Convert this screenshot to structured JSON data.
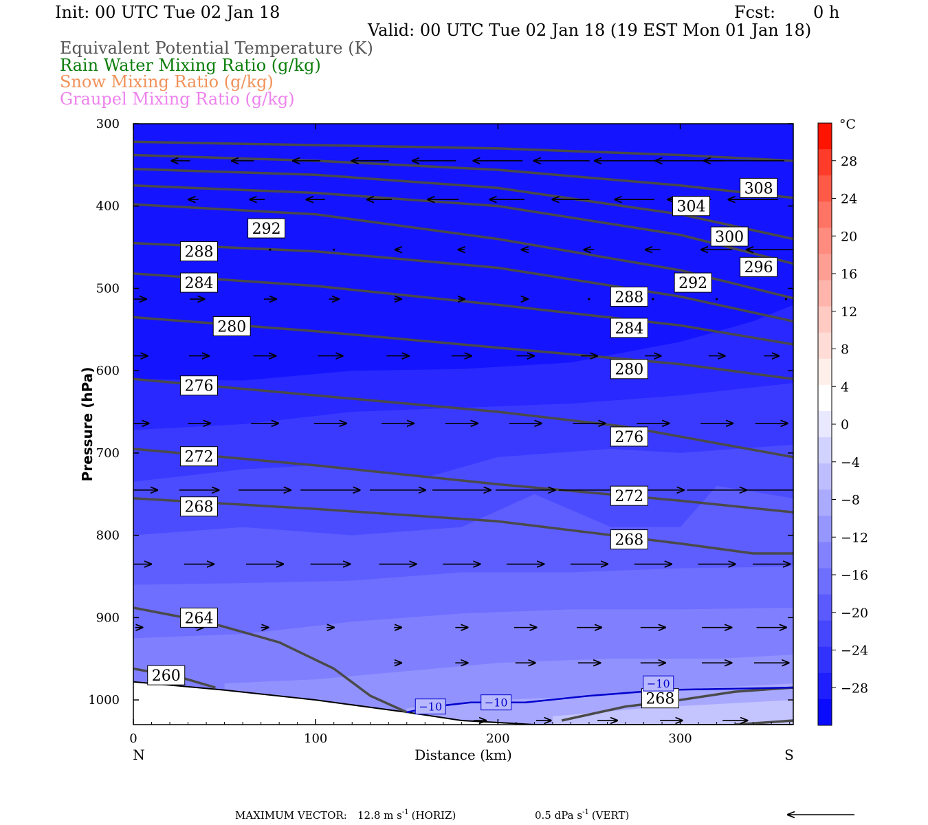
{
  "header": {
    "init": "Init: 00 UTC Tue 02 Jan 18",
    "fcst_label": "Fcst:",
    "fcst_value": "0 h",
    "valid": "Valid: 00 UTC Tue 02 Jan 18 (19 EST Mon 01 Jan 18)"
  },
  "legend": [
    {
      "text": "Equivalent Potential Temperature (K)",
      "color": "#555555"
    },
    {
      "text": "Rain Water Mixing Ratio (g/kg)",
      "color": "#0b7d0b"
    },
    {
      "text": "Snow Mixing Ratio (g/kg)",
      "color": "#f0925a"
    },
    {
      "text": "Graupel Mixing Ratio (g/kg)",
      "color": "#ee82ee"
    }
  ],
  "footer": {
    "max_vector_label": "MAXIMUM VECTOR:",
    "horiz_value": "12.8 m s",
    "horiz_exp": "-1",
    "horiz_tag": "(HORIZ)",
    "vert_value": "0.5 dPa s",
    "vert_exp": "-1",
    "vert_tag": "(VERT)"
  },
  "chart_data": {
    "type": "contour",
    "xlabel": "Distance (km)",
    "ylabel": "Pressure (hPa)",
    "xlim": [
      0,
      362
    ],
    "ylim": [
      300,
      1030
    ],
    "y_scale": "linear-pressure",
    "x_ticks": [
      "0",
      "100",
      "200",
      "300"
    ],
    "x_tick_values": [
      0,
      100,
      200,
      300
    ],
    "y_ticks": [
      "300",
      "400",
      "500",
      "600",
      "700",
      "800",
      "900",
      "1000"
    ],
    "y_tick_values": [
      300,
      400,
      500,
      600,
      700,
      800,
      900,
      1000
    ],
    "x_end_labels": {
      "left": "N",
      "right": "S"
    },
    "colorbar": {
      "unit": "°C",
      "labels": [
        "28",
        "24",
        "20",
        "16",
        "12",
        "8",
        "4",
        "0",
        "−4",
        "−8",
        "−12",
        "−16",
        "−20",
        "−24",
        "−28"
      ],
      "values": [
        28,
        24,
        20,
        16,
        12,
        8,
        4,
        0,
        -4,
        -8,
        -12,
        -16,
        -20,
        -24,
        -28
      ],
      "range": [
        -32,
        32
      ],
      "colors": [
        "#ff1400",
        "#ff3c2a",
        "#ff5a48",
        "#ff7464",
        "#ff8c7e",
        "#ff9f94",
        "#ffb5ab",
        "#ffcac2",
        "#ffdcd6",
        "#ffefeb",
        "#ffffff",
        "#e8e8ff",
        "#d2d2ff",
        "#bebeff",
        "#aaaaff",
        "#9696ff",
        "#8282ff",
        "#6e6eff",
        "#5a5aff",
        "#4646ff",
        "#3232ff",
        "#1e1eff",
        "#0a0aff"
      ]
    },
    "temperature_bands": [
      {
        "color": "#2828ff",
        "boundary": [
          [
            0,
            610
          ],
          [
            60,
            612
          ],
          [
            120,
            600
          ],
          [
            180,
            598
          ],
          [
            240,
            590
          ],
          [
            300,
            565
          ],
          [
            340,
            540
          ],
          [
            362,
            520
          ]
        ]
      },
      {
        "color": "#3a3aff",
        "boundary": [
          [
            0,
            672
          ],
          [
            60,
            665
          ],
          [
            120,
            650
          ],
          [
            180,
            645
          ],
          [
            240,
            640
          ],
          [
            300,
            630
          ],
          [
            362,
            615
          ]
        ]
      },
      {
        "color": "#4c4cff",
        "boundary": [
          [
            0,
            735
          ],
          [
            60,
            720
          ],
          [
            100,
            715
          ],
          [
            160,
            730
          ],
          [
            200,
            705
          ],
          [
            262,
            695
          ],
          [
            300,
            700
          ],
          [
            362,
            690
          ]
        ]
      },
      {
        "color": "#5e5eff",
        "boundary": [
          [
            0,
            800
          ],
          [
            60,
            790
          ],
          [
            120,
            800
          ],
          [
            180,
            790
          ],
          [
            220,
            750
          ],
          [
            262,
            790
          ],
          [
            300,
            790
          ],
          [
            320,
            740
          ],
          [
            362,
            755
          ]
        ]
      },
      {
        "color": "#6e6eff",
        "boundary": [
          [
            0,
            860
          ],
          [
            60,
            858
          ],
          [
            120,
            855
          ],
          [
            180,
            845
          ],
          [
            240,
            845
          ],
          [
            300,
            840
          ],
          [
            362,
            838
          ]
        ]
      },
      {
        "color": "#8080ff",
        "boundary": [
          [
            0,
            925
          ],
          [
            60,
            920
          ],
          [
            120,
            905
          ],
          [
            180,
            895
          ],
          [
            240,
            890
          ],
          [
            300,
            890
          ],
          [
            362,
            888
          ]
        ]
      },
      {
        "color": "#9292ff",
        "boundary": [
          [
            50,
            980
          ],
          [
            100,
            975
          ],
          [
            150,
            965
          ],
          [
            200,
            955
          ],
          [
            260,
            950
          ],
          [
            320,
            950
          ],
          [
            362,
            945
          ]
        ]
      },
      {
        "color": "#a8a8ff",
        "boundary": [
          [
            150,
            1010
          ],
          [
            200,
            1000
          ],
          [
            260,
            995
          ],
          [
            320,
            985
          ],
          [
            362,
            980
          ]
        ]
      },
      {
        "color": "#c4c4ff",
        "boundary": [
          [
            230,
            1020
          ],
          [
            280,
            1010
          ],
          [
            320,
            1005
          ],
          [
            362,
            1000
          ]
        ]
      }
    ],
    "theta_e_contours": [
      {
        "label": "308",
        "points": [
          [
            0,
            322
          ],
          [
            100,
            326
          ],
          [
            200,
            330
          ],
          [
            300,
            338
          ],
          [
            362,
            345
          ]
        ],
        "label_at": [
          343,
          378
        ]
      },
      {
        "label": "304",
        "points": [
          [
            0,
            338
          ],
          [
            100,
            345
          ],
          [
            200,
            356
          ],
          [
            300,
            375
          ],
          [
            362,
            390
          ]
        ],
        "label_at": [
          306,
          400
        ]
      },
      {
        "label": "300",
        "points": [
          [
            0,
            355
          ],
          [
            100,
            362
          ],
          [
            200,
            378
          ],
          [
            300,
            410
          ],
          [
            362,
            440
          ]
        ],
        "label_at": [
          327,
          437
        ]
      },
      {
        "label": "296",
        "points": [
          [
            0,
            375
          ],
          [
            100,
            384
          ],
          [
            200,
            400
          ],
          [
            300,
            435
          ],
          [
            362,
            470
          ]
        ],
        "label_at": [
          343,
          474
        ]
      },
      {
        "label": "292",
        "points": [
          [
            0,
            398
          ],
          [
            100,
            410
          ],
          [
            200,
            440
          ],
          [
            300,
            478
          ],
          [
            362,
            512
          ]
        ],
        "label_at": [
          73,
          427
        ],
        "label_at2": [
          307,
          493
        ]
      },
      {
        "label": "288",
        "points": [
          [
            0,
            445
          ],
          [
            100,
            455
          ],
          [
            200,
            475
          ],
          [
            300,
            510
          ],
          [
            362,
            540
          ]
        ],
        "label_at": [
          36,
          455
        ],
        "label_at2": [
          272,
          510
        ]
      },
      {
        "label": "284",
        "points": [
          [
            0,
            482
          ],
          [
            100,
            497
          ],
          [
            200,
            520
          ],
          [
            300,
            545
          ],
          [
            362,
            568
          ]
        ],
        "label_at": [
          36,
          493
        ],
        "label_at2": [
          272,
          548
        ]
      },
      {
        "label": "280",
        "points": [
          [
            0,
            535
          ],
          [
            100,
            552
          ],
          [
            200,
            572
          ],
          [
            300,
            592
          ],
          [
            362,
            610
          ]
        ],
        "label_at": [
          54,
          546
        ],
        "label_at2": [
          272,
          598
        ]
      },
      {
        "label": "276",
        "points": [
          [
            0,
            610
          ],
          [
            100,
            630
          ],
          [
            200,
            650
          ],
          [
            270,
            668
          ],
          [
            362,
            705
          ]
        ],
        "label_at": [
          36,
          618
        ],
        "label_at2": [
          272,
          680
        ]
      },
      {
        "label": "272",
        "points": [
          [
            0,
            695
          ],
          [
            100,
            715
          ],
          [
            200,
            738
          ],
          [
            300,
            758
          ],
          [
            362,
            772
          ]
        ],
        "label_at": [
          36,
          704
        ],
        "label_at2": [
          272,
          752
        ]
      },
      {
        "label": "268",
        "points": [
          [
            0,
            755
          ],
          [
            100,
            768
          ],
          [
            200,
            783
          ],
          [
            300,
            810
          ],
          [
            340,
            822
          ],
          [
            362,
            822
          ]
        ],
        "label_at": [
          36,
          765
        ],
        "label_at2": [
          272,
          805
        ]
      },
      {
        "label": "264",
        "points": [
          [
            0,
            888
          ],
          [
            40,
            905
          ],
          [
            80,
            930
          ],
          [
            110,
            962
          ],
          [
            130,
            995
          ],
          [
            150,
            1015
          ]
        ],
        "label_at": [
          36,
          900
        ]
      },
      {
        "label": "260",
        "points": [
          [
            0,
            962
          ],
          [
            25,
            972
          ],
          [
            45,
            985
          ]
        ],
        "label_at": [
          18,
          970
        ]
      },
      {
        "label": "268",
        "points": [
          [
            235,
            1025
          ],
          [
            270,
            1008
          ],
          [
            300,
            1000
          ],
          [
            330,
            990
          ],
          [
            362,
            985
          ]
        ],
        "label_at": [
          289,
          998
        ]
      },
      {
        "label": "",
        "points": [
          [
            330,
            1030
          ],
          [
            362,
            1025
          ]
        ]
      }
    ],
    "isotherm_minus10": {
      "label": "−10",
      "points": [
        [
          150,
          1015
        ],
        [
          165,
          1008
        ],
        [
          185,
          1003
        ],
        [
          215,
          1003
        ],
        [
          250,
          995
        ],
        [
          290,
          988
        ],
        [
          362,
          985
        ]
      ],
      "label_at": [
        [
          163,
          1008
        ],
        [
          199,
          1003
        ],
        [
          288,
          980
        ]
      ]
    },
    "terrain": [
      [
        0,
        978
      ],
      [
        50,
        988
      ],
      [
        100,
        1000
      ],
      [
        150,
        1015
      ],
      [
        180,
        1025
      ],
      [
        220,
        1030
      ],
      [
        362,
        1030
      ]
    ],
    "wind_vectors": [
      {
        "p": 345,
        "x": [
          26,
          60,
          95,
          130,
          165,
          200,
          235,
          270,
          305,
          335
        ],
        "u": [
          -1.5,
          -1.8,
          -2.2,
          -3.0,
          -3.5,
          -4.0,
          -4.5,
          -5.0,
          -5.5,
          -6.5
        ]
      },
      {
        "p": 392,
        "x": [
          33,
          68,
          100,
          135,
          170,
          205,
          240,
          275,
          305,
          340
        ],
        "u": [
          -0.8,
          -1.2,
          -1.5,
          -2.0,
          -2.5,
          -2.8,
          -3.0,
          -3.2,
          -3.5,
          -4.0
        ]
      },
      {
        "p": 453,
        "x": [
          75,
          110,
          145,
          180,
          215,
          250,
          285,
          320,
          350
        ],
        "u": [
          -0.2,
          -0.3,
          -0.4,
          -0.5,
          -0.6,
          -0.8,
          -1.2,
          -2.5,
          -4.0
        ]
      },
      {
        "p": 513,
        "x": [
          3,
          35,
          75,
          110,
          145,
          180,
          215,
          250,
          285,
          320,
          358
        ],
        "u": [
          1.2,
          1.2,
          1.0,
          0.8,
          0.6,
          0.5,
          0.4,
          0.3,
          0.2,
          0.2,
          0.3
        ]
      },
      {
        "p": 582,
        "x": [
          3,
          36,
          72,
          108,
          145,
          180,
          215,
          250,
          285,
          320,
          350
        ],
        "u": [
          1.4,
          1.6,
          1.8,
          2.0,
          1.8,
          1.6,
          1.4,
          1.3,
          1.3,
          1.3,
          1.2
        ]
      },
      {
        "p": 664,
        "x": [
          3,
          36,
          72,
          108,
          145,
          180,
          215,
          250,
          285,
          320,
          350
        ],
        "u": [
          1.6,
          1.8,
          2.2,
          2.6,
          2.6,
          2.6,
          2.6,
          2.6,
          2.6,
          2.6,
          2.6
        ]
      },
      {
        "p": 745,
        "x": [
          3,
          36,
          72,
          108,
          145,
          180,
          215,
          250,
          285,
          320,
          350
        ],
        "u": [
          3.0,
          3.2,
          4.2,
          4.8,
          4.5,
          4.7,
          4.8,
          4.9,
          5.0,
          4.8,
          4.6
        ]
      },
      {
        "p": 835,
        "x": [
          3,
          36,
          72,
          108,
          145,
          180,
          215,
          250,
          285,
          320,
          350
        ],
        "u": [
          2.0,
          2.4,
          3.0,
          3.2,
          3.0,
          3.0,
          3.0,
          3.0,
          3.0,
          3.0,
          3.0
        ]
      },
      {
        "p": 912,
        "x": [
          3,
          36,
          72,
          108,
          145,
          180,
          215,
          250,
          285,
          320,
          350
        ],
        "u": [
          0.6,
          0.7,
          0.6,
          0.6,
          0.6,
          1.0,
          1.8,
          2.0,
          2.0,
          2.4,
          2.4
        ]
      },
      {
        "p": 955,
        "x": [
          145,
          180,
          215,
          250,
          285,
          320,
          350
        ],
        "u": [
          0.6,
          1.0,
          1.6,
          1.8,
          2.0,
          2.4,
          2.8
        ]
      },
      {
        "p": 1025,
        "x": [
          190,
          225,
          260,
          295,
          330
        ],
        "u": [
          1.0,
          1.2,
          1.6,
          1.8,
          2.0
        ]
      }
    ]
  }
}
